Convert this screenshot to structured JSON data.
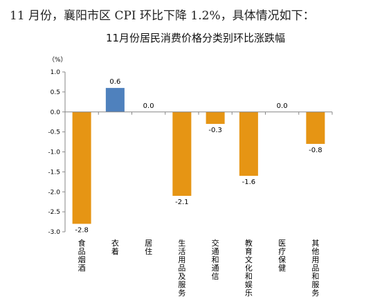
{
  "headline": "11 月份，襄阳市区 CPI 环比下降 1.2%，具体情况如下：",
  "chart_data": {
    "type": "bar",
    "title": "11月份居民消费价格分类别环比涨跌幅",
    "unit_label": "（%）",
    "categories": [
      "食品烟酒",
      "衣着",
      "居住",
      "生活用品及服务",
      "交通和通信",
      "教育文化和娱乐",
      "医疗保健",
      "其他用品和服务"
    ],
    "values": [
      -2.8,
      0.6,
      0.0,
      -2.1,
      -0.3,
      -1.6,
      0.0,
      -0.8
    ],
    "data_labels": [
      "-2.8",
      "0.6",
      "0.0",
      "-2.1",
      "-0.3",
      "-1.6",
      "0.0",
      "-0.8"
    ],
    "ylim": [
      -3.0,
      1.0
    ],
    "yticks": [
      "1.0",
      "0.5",
      "0.0",
      "-0.5",
      "-1.0",
      "-1.5",
      "-2.0",
      "-2.5",
      "-3.0"
    ],
    "grid": false,
    "legend": "none",
    "colors": {
      "negative": "#E69514",
      "positive": "#4F81BD",
      "axis": "#868686"
    }
  }
}
